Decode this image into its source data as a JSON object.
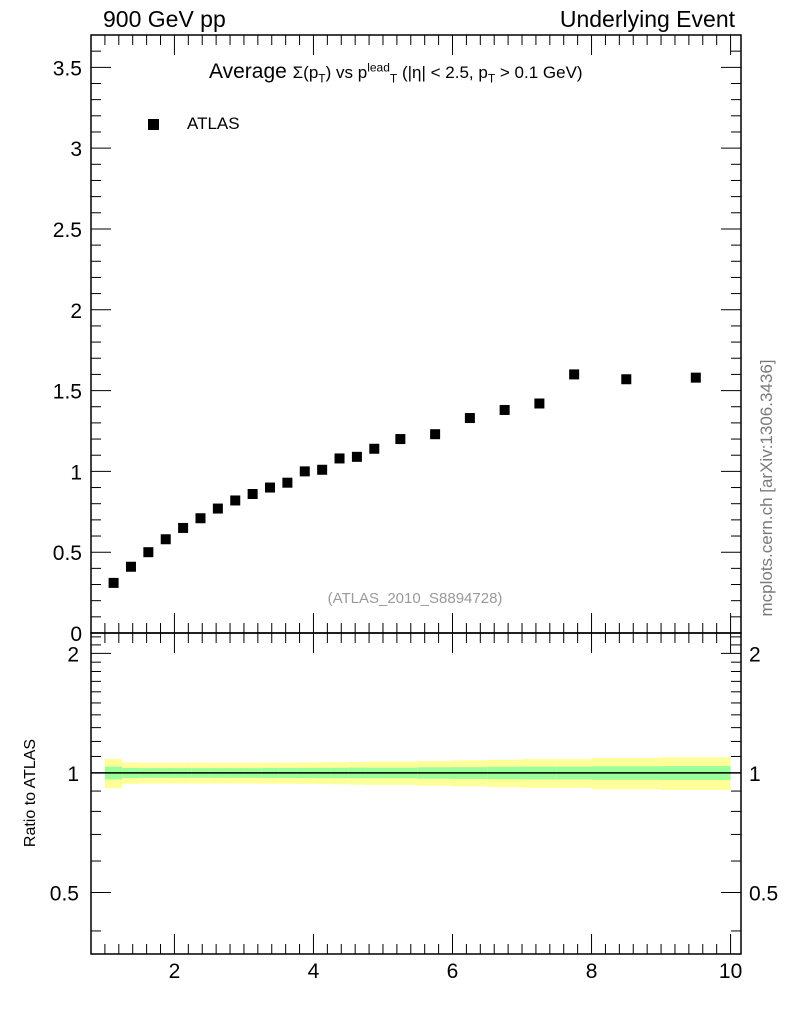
{
  "header": {
    "left": "900 GeV pp",
    "right": "Underlying Event",
    "side_note": "mcplots.cern.ch [arXiv:1306.3436]"
  },
  "chart_data": [
    {
      "type": "scatter",
      "title": "Average Σ(pT) vs pTlead (|η| < 2.5, pT > 0.1 GeV)",
      "title_parts": {
        "lead": "Average ",
        "sigma": "Σ(p",
        "sub_t1": "T",
        "close": ") vs p",
        "sup_lead": "lead",
        "sub_t2": "T",
        "cond1": " (|η| < 2.5, p",
        "sub_t3": "T",
        "cond2": " > 0.1 GeV)"
      },
      "legend": [
        "ATLAS"
      ],
      "analysis_id": "(ATLAS_2010_S8894728)",
      "xlim": [
        0.8,
        10.15
      ],
      "ylim": [
        0,
        3.7
      ],
      "yticks": [
        0,
        0.5,
        1,
        1.5,
        2,
        2.5,
        3,
        3.5
      ],
      "ytick_labels": [
        "0",
        "0.5",
        "1",
        "1.5",
        "2",
        "2.5",
        "3",
        "3.5"
      ],
      "series": [
        {
          "name": "ATLAS",
          "color": "#000000",
          "x": [
            1.125,
            1.375,
            1.625,
            1.875,
            2.125,
            2.375,
            2.625,
            2.875,
            3.125,
            3.375,
            3.625,
            3.875,
            4.125,
            4.375,
            4.625,
            4.875,
            5.25,
            5.75,
            6.25,
            6.75,
            7.25,
            7.75,
            8.5,
            9.5
          ],
          "y": [
            0.31,
            0.41,
            0.5,
            0.58,
            0.65,
            0.71,
            0.77,
            0.82,
            0.86,
            0.9,
            0.93,
            1.0,
            1.01,
            1.08,
            1.09,
            1.14,
            1.2,
            1.23,
            1.33,
            1.38,
            1.42,
            1.6,
            1.57,
            1.58
          ]
        }
      ]
    },
    {
      "type": "area",
      "ylabel": "Ratio to ATLAS",
      "xlim": [
        0.8,
        10.15
      ],
      "ylim": [
        0.35,
        2.25
      ],
      "xticks": [
        2,
        4,
        6,
        8,
        10
      ],
      "xtick_labels": [
        "2",
        "4",
        "6",
        "8",
        "10"
      ],
      "yticks": [
        0.5,
        1,
        2
      ],
      "ytick_labels": [
        "0.5",
        "1",
        "2"
      ],
      "band_edges": [
        1.0,
        1.25,
        1.5,
        1.75,
        2.0,
        2.25,
        2.5,
        2.75,
        3.0,
        3.25,
        3.5,
        3.75,
        4.0,
        4.25,
        4.5,
        4.75,
        5.0,
        5.5,
        6.0,
        6.5,
        7.0,
        7.5,
        8.0,
        9.0,
        10.0
      ],
      "inner_band": [
        0.037,
        0.029,
        0.028,
        0.028,
        0.028,
        0.028,
        0.028,
        0.028,
        0.028,
        0.029,
        0.029,
        0.029,
        0.03,
        0.03,
        0.031,
        0.031,
        0.031,
        0.033,
        0.034,
        0.036,
        0.037,
        0.037,
        0.039,
        0.04
      ],
      "outer_band": [
        0.085,
        0.062,
        0.06,
        0.06,
        0.06,
        0.06,
        0.06,
        0.06,
        0.06,
        0.061,
        0.061,
        0.062,
        0.063,
        0.064,
        0.066,
        0.068,
        0.068,
        0.072,
        0.075,
        0.079,
        0.083,
        0.083,
        0.09,
        0.095
      ],
      "colors": {
        "inner": "#99ff99",
        "outer": "#ffff99",
        "line": "#000000"
      }
    }
  ]
}
